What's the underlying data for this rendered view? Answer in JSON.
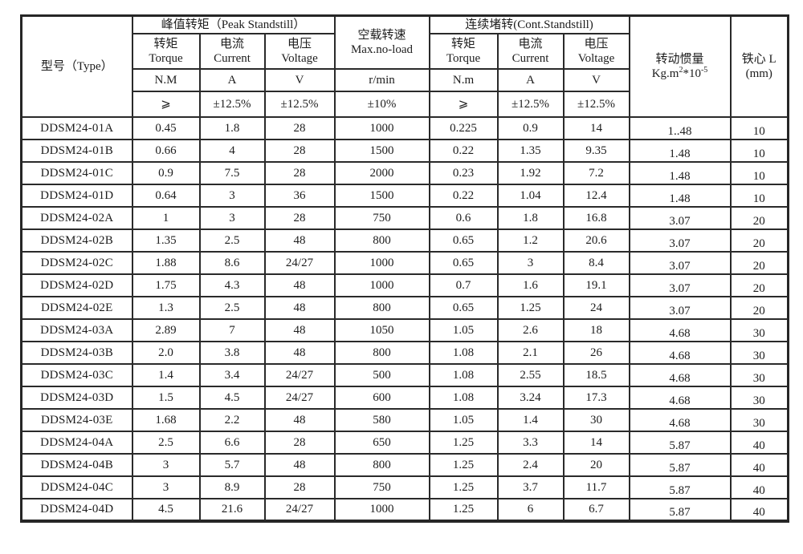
{
  "colors": {
    "border": "#2a2a2a",
    "text": "#1d1d1d",
    "background": "#ffffff"
  },
  "table": {
    "header": {
      "type_label": "型号（Type）",
      "peak_group": "峰值转矩（Peak Standstill）",
      "noload_cn": "空载转速",
      "noload_en": "Max.no-load",
      "cont_group": "连续堵转(Cont.Standstill)",
      "inertia_cn": "转动惯量",
      "inertia_unit": {
        "base": "Kg.m",
        "sup1": "2",
        "mid": "*10",
        "sup2": "-5"
      },
      "core_cn": "铁心 L",
      "core_unit": "(mm)"
    },
    "subheaders": {
      "torque_cn": "转矩",
      "torque_en": "Torque",
      "current_cn": "电流",
      "current_en": "Current",
      "voltage_cn": "电压",
      "voltage_en": "Voltage"
    },
    "units": {
      "peak_torque": "N.M",
      "peak_current": "A",
      "peak_voltage": "V",
      "speed": "r/min",
      "cont_torque": "N.m",
      "cont_current": "A",
      "cont_voltage": "V"
    },
    "tolerances": {
      "peak_torque": "⩾",
      "peak_current": "±12.5%",
      "peak_voltage": "±12.5%",
      "speed": "±10%",
      "cont_torque": "⩾",
      "cont_current": "±12.5%",
      "cont_voltage": "±12.5%"
    },
    "rows": [
      {
        "type": "DDSM24-01A",
        "values": [
          "0.45",
          "1.8",
          "28",
          "1000",
          "0.225",
          "0.9",
          "14",
          "1..48",
          "10"
        ]
      },
      {
        "type": "DDSM24-01B",
        "values": [
          "0.66",
          "4",
          "28",
          "1500",
          "0.22",
          "1.35",
          "9.35",
          "1.48",
          "10"
        ]
      },
      {
        "type": "DDSM24-01C",
        "values": [
          "0.9",
          "7.5",
          "28",
          "2000",
          "0.23",
          "1.92",
          "7.2",
          "1.48",
          "10"
        ]
      },
      {
        "type": "DDSM24-01D",
        "values": [
          "0.64",
          "3",
          "36",
          "1500",
          "0.22",
          "1.04",
          "12.4",
          "1.48",
          "10"
        ]
      },
      {
        "type": "DDSM24-02A",
        "values": [
          "1",
          "3",
          "28",
          "750",
          "0.6",
          "1.8",
          "16.8",
          "3.07",
          "20"
        ]
      },
      {
        "type": "DDSM24-02B",
        "values": [
          "1.35",
          "2.5",
          "48",
          "800",
          "0.65",
          "1.2",
          "20.6",
          "3.07",
          "20"
        ]
      },
      {
        "type": "DDSM24-02C",
        "values": [
          "1.88",
          "8.6",
          "24/27",
          "1000",
          "0.65",
          "3",
          "8.4",
          "3.07",
          "20"
        ]
      },
      {
        "type": "DDSM24-02D",
        "values": [
          "1.75",
          "4.3",
          "48",
          "1000",
          "0.7",
          "1.6",
          "19.1",
          "3.07",
          "20"
        ]
      },
      {
        "type": "DDSM24-02E",
        "values": [
          "1.3",
          "2.5",
          "48",
          "800",
          "0.65",
          "1.25",
          "24",
          "3.07",
          "20"
        ]
      },
      {
        "type": "DDSM24-03A",
        "values": [
          "2.89",
          "7",
          "48",
          "1050",
          "1.05",
          "2.6",
          "18",
          "4.68",
          "30"
        ]
      },
      {
        "type": "DDSM24-03B",
        "values": [
          "2.0",
          "3.8",
          "48",
          "800",
          "1.08",
          "2.1",
          "26",
          "4.68",
          "30"
        ]
      },
      {
        "type": "DDSM24-03C",
        "values": [
          "1.4",
          "3.4",
          "24/27",
          "500",
          "1.08",
          "2.55",
          "18.5",
          "4.68",
          "30"
        ]
      },
      {
        "type": "DDSM24-03D",
        "values": [
          "1.5",
          "4.5",
          "24/27",
          "600",
          "1.08",
          "3.24",
          "17.3",
          "4.68",
          "30"
        ]
      },
      {
        "type": "DDSM24-03E",
        "values": [
          "1.68",
          "2.2",
          "48",
          "580",
          "1.05",
          "1.4",
          "30",
          "4.68",
          "30"
        ]
      },
      {
        "type": "DDSM24-04A",
        "values": [
          "2.5",
          "6.6",
          "28",
          "650",
          "1.25",
          "3.3",
          "14",
          "5.87",
          "40"
        ]
      },
      {
        "type": "DDSM24-04B",
        "values": [
          "3",
          "5.7",
          "48",
          "800",
          "1.25",
          "2.4",
          "20",
          "5.87",
          "40"
        ]
      },
      {
        "type": "DDSM24-04C",
        "values": [
          "3",
          "8.9",
          "28",
          "750",
          "1.25",
          "3.7",
          "11.7",
          "5.87",
          "40"
        ]
      },
      {
        "type": "DDSM24-04D",
        "values": [
          "4.5",
          "21.6",
          "24/27",
          "1000",
          "1.25",
          "6",
          "6.7",
          "5.87",
          "40"
        ]
      }
    ]
  }
}
